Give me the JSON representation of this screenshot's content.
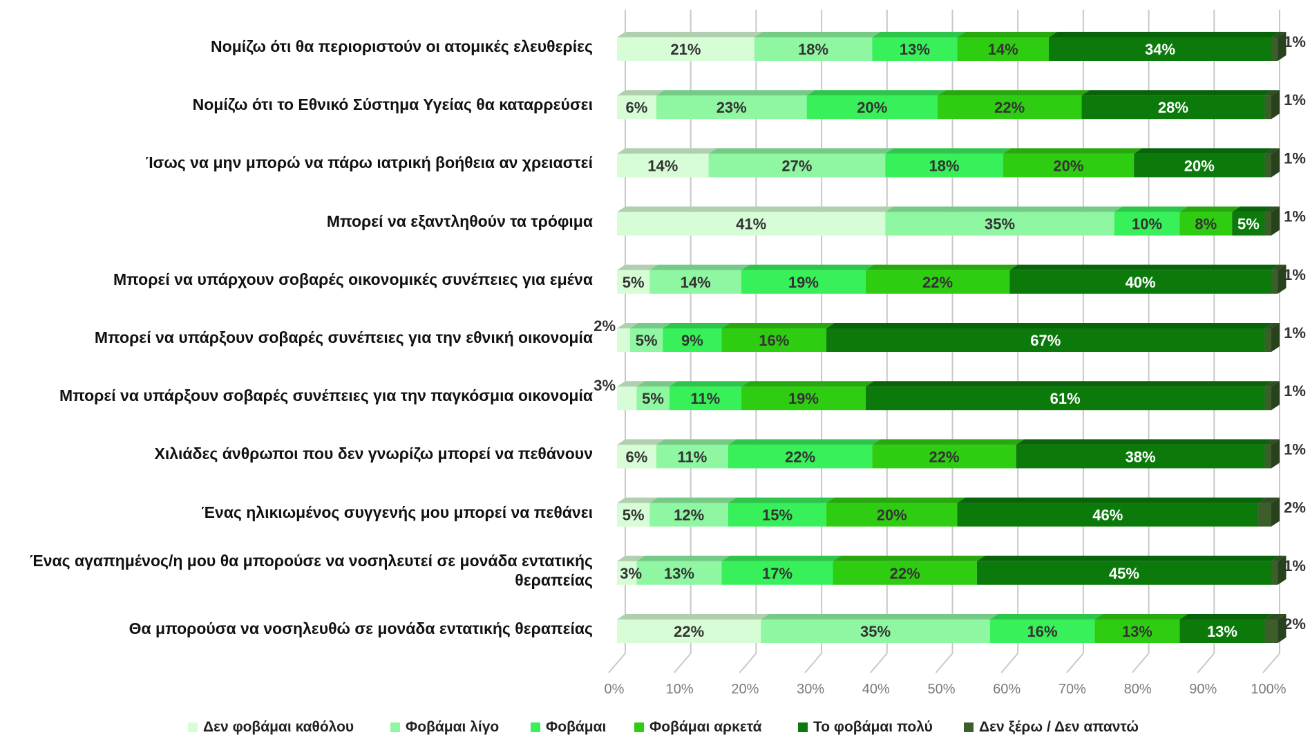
{
  "chart_data": {
    "type": "bar",
    "orientation": "horizontal",
    "stacked": "percent",
    "categories": [
      "Νομίζω ότι θα περιοριστούν οι ατομικές ελευθερίες",
      "Νομίζω ότι το Εθνικό Σύστημα Υγείας θα καταρρεύσει",
      "Ίσως να μην μπορώ να πάρω ιατρική βοήθεια αν χρειαστεί",
      "Μπορεί να εξαντληθούν τα τρόφιμα",
      "Μπορεί να υπάρχουν σοβαρές οικονομικές συνέπειες για εμένα",
      "Μπορεί να υπάρξουν σοβαρές συνέπειες για την εθνική οικονομία",
      "Μπορεί να υπάρξουν σοβαρές συνέπειες για την παγκόσμια οικονομία",
      "Χιλιάδες άνθρωποι που δεν γνωρίζω μπορεί να πεθάνουν",
      "Ένας ηλικιωμένος συγγενής μου μπορεί να πεθάνει",
      "Ένας αγαπημένος/η μου  θα μπορούσε να νοσηλευτεί σε μονάδα εντατικής θεραπείας",
      "Θα μπορούσα να νοσηλευθώ σε μονάδα εντατικής θεραπείας"
    ],
    "series": [
      {
        "name": "Δεν φοβάμαι καθόλου",
        "color": "#d6fdd6",
        "values": [
          21,
          6,
          14,
          41,
          5,
          2,
          3,
          6,
          5,
          3,
          22
        ]
      },
      {
        "name": "Φοβάμαι λίγο",
        "color": "#8ff6a2",
        "values": [
          18,
          23,
          27,
          35,
          14,
          5,
          5,
          11,
          12,
          13,
          35
        ]
      },
      {
        "name": "Φοβάμαι",
        "color": "#37f05a",
        "values": [
          13,
          20,
          18,
          10,
          19,
          9,
          11,
          22,
          15,
          17,
          16
        ]
      },
      {
        "name": "Φοβάμαι αρκετά",
        "color": "#2fcd11",
        "values": [
          14,
          22,
          20,
          8,
          22,
          16,
          19,
          22,
          20,
          22,
          13
        ]
      },
      {
        "name": "Το φοβάμαι πολύ",
        "color": "#0b7a0b",
        "values": [
          34,
          28,
          20,
          5,
          40,
          67,
          61,
          38,
          46,
          45,
          13
        ]
      },
      {
        "name": "Δεν ξέρω / Δεν απαντώ",
        "color": "#3b5e2b",
        "values": [
          1,
          1,
          1,
          1,
          1,
          1,
          1,
          1,
          2,
          1,
          2
        ]
      }
    ],
    "data_labels": [
      [
        "21%",
        "18%",
        "13%",
        "14%",
        "34%",
        "1%"
      ],
      [
        "6%",
        "23%",
        "20%",
        "22%",
        "28%",
        "1%"
      ],
      [
        "14%",
        "27%",
        "18%",
        "20%",
        "20%",
        "1%"
      ],
      [
        "41%",
        "35%",
        "10%",
        "8%",
        "5%",
        "1%"
      ],
      [
        "5%",
        "14%",
        "19%",
        "22%",
        "40%",
        "1%"
      ],
      [
        "2%",
        "5%",
        "9%",
        "16%",
        "67%",
        "1%"
      ],
      [
        "3%",
        "5%",
        "11%",
        "19%",
        "61%",
        "1%"
      ],
      [
        "6%",
        "11%",
        "22%",
        "22%",
        "38%",
        "1%"
      ],
      [
        "5%",
        "12%",
        "15%",
        "20%",
        "46%",
        "2%"
      ],
      [
        "3%",
        "13%",
        "17%",
        "22%",
        "45%",
        "1%"
      ],
      [
        "22%",
        "35%",
        "16%",
        "13%",
        "13%",
        "2%"
      ]
    ],
    "x_ticks": [
      "0%",
      "10%",
      "20%",
      "30%",
      "40%",
      "50%",
      "60%",
      "70%",
      "80%",
      "90%",
      "100%"
    ],
    "xlim": [
      0,
      100
    ],
    "grid": true,
    "legend_position": "bottom",
    "title": "",
    "xlabel": "",
    "ylabel": ""
  },
  "colors": {
    "gridline": "#c8c8c8",
    "tick_text": "#7a7a7a",
    "label_dark": "#333333",
    "label_light": "#ffffff"
  }
}
